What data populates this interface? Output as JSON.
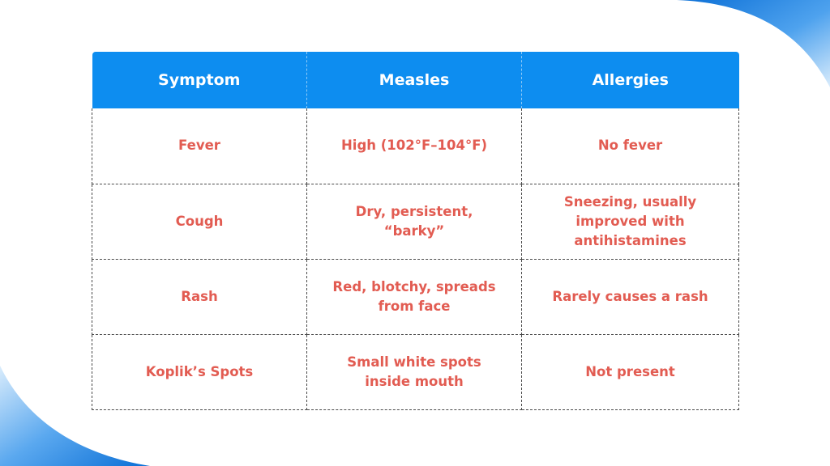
{
  "colors": {
    "header_bg": "#0d8df0",
    "header_text": "#ffffff",
    "cell_text": "#e25c52",
    "decor_blue": "#1f86e0"
  },
  "table": {
    "headers": [
      "Symptom",
      "Measles",
      "Allergies"
    ],
    "rows": [
      [
        "Fever",
        "High (102°F–104°F)",
        "No fever"
      ],
      [
        "Cough",
        "Dry, persistent, “barky”",
        "Sneezing, usually improved with antihistamines"
      ],
      [
        "Rash",
        "Red, blotchy, spreads from face",
        "Rarely causes a rash"
      ],
      [
        "Koplik’s Spots",
        "Small white spots inside mouth",
        "Not present"
      ]
    ]
  }
}
